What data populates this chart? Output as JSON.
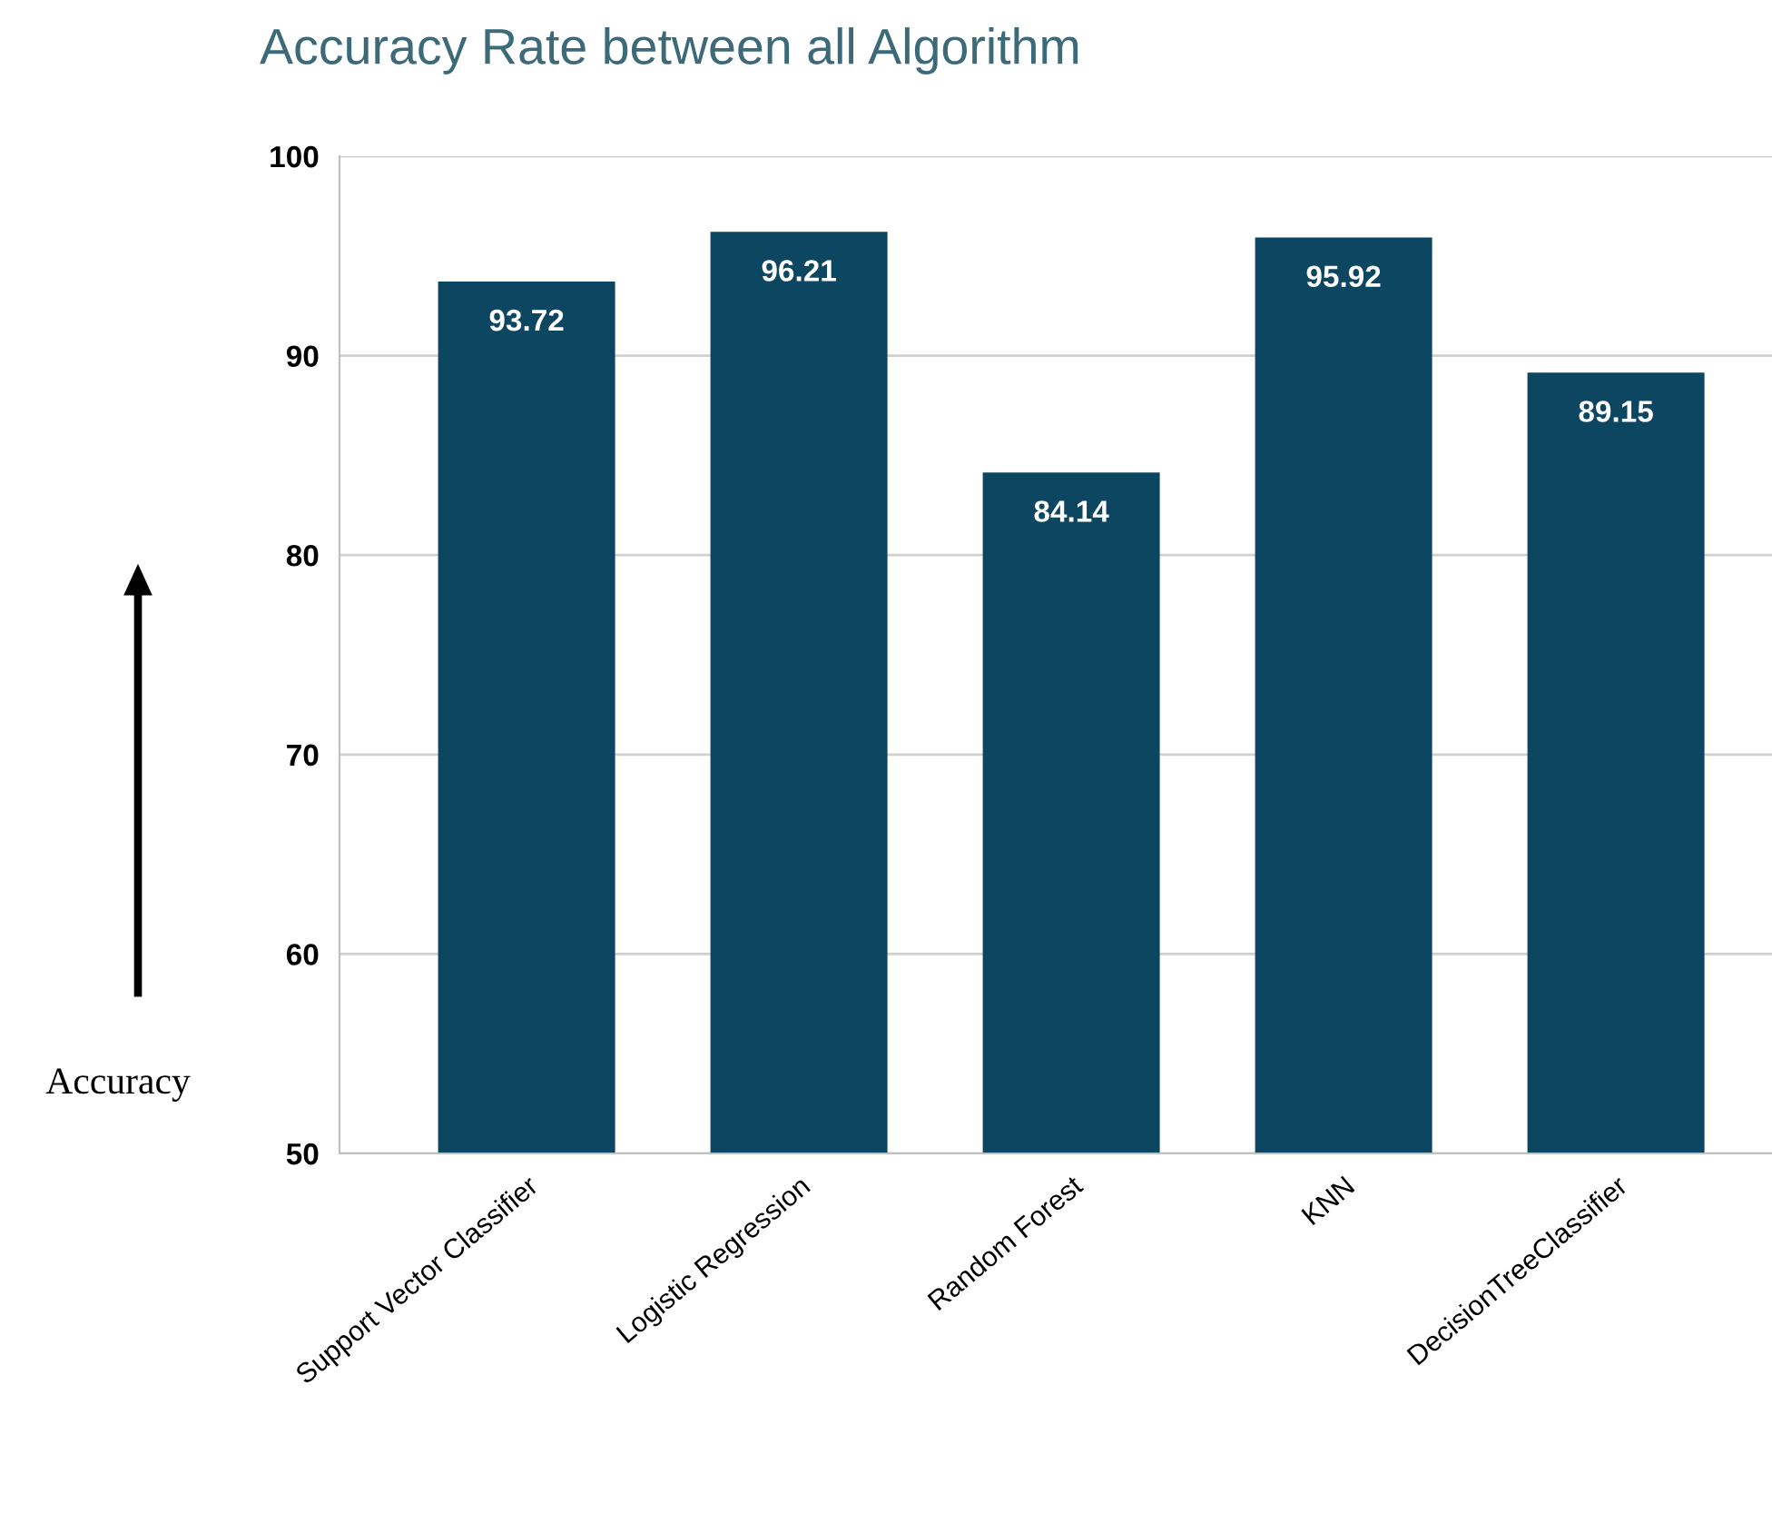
{
  "chart_data": {
    "type": "bar",
    "title": "Accuracy Rate between all Algorithm",
    "ylabel": "Accuracy",
    "categories": [
      "Support Vector Classifier",
      "Logistic Regression",
      "Random Forest",
      "KNN",
      "DecisionTreeClassifier"
    ],
    "values": [
      93.72,
      96.21,
      84.14,
      95.92,
      89.15
    ],
    "color": "#0d4660",
    "ylim": [
      50,
      100
    ],
    "yticks": [
      50,
      60,
      70,
      80,
      90,
      100
    ],
    "grid": "y",
    "data_labels": true
  }
}
